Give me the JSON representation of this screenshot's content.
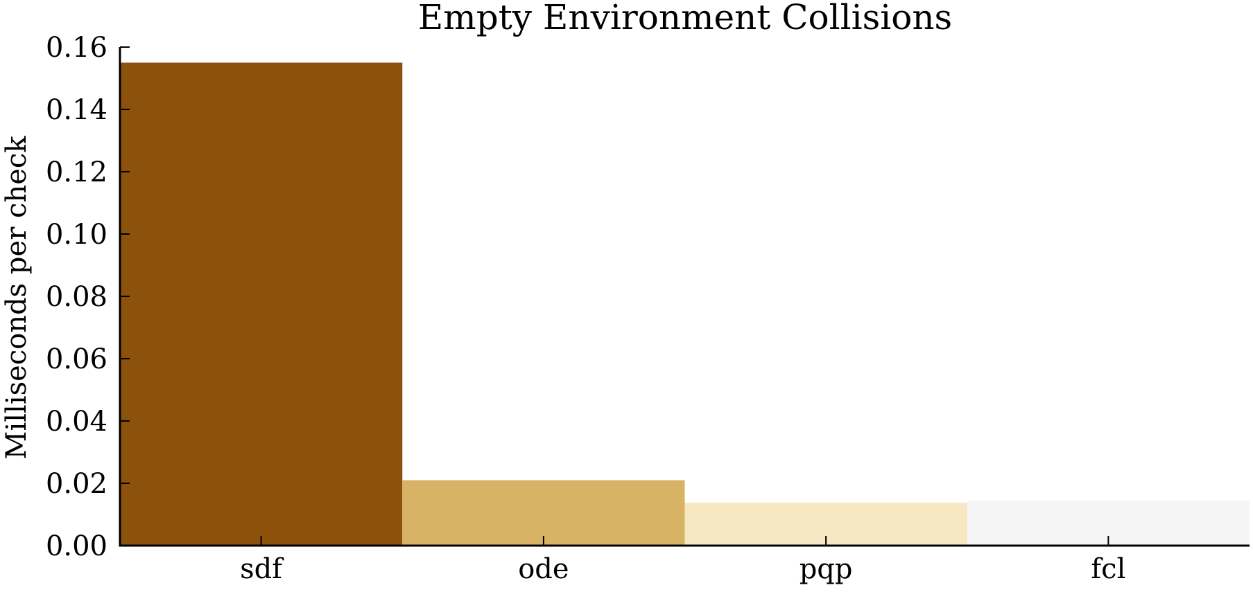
{
  "chart_data": {
    "type": "bar",
    "title": "Empty Environment Collisions",
    "xlabel": "",
    "ylabel": "Milliseconds per check",
    "categories": [
      "sdf",
      "ode",
      "pqp",
      "fcl"
    ],
    "values": [
      0.155,
      0.021,
      0.0138,
      0.0145
    ],
    "colors": [
      "#8c510a",
      "#d8b365",
      "#f6e8c3",
      "#f5f5f5"
    ],
    "ylim": [
      0,
      0.16
    ],
    "yticks": [
      "0.00",
      "0.02",
      "0.04",
      "0.06",
      "0.08",
      "0.10",
      "0.12",
      "0.14",
      "0.16"
    ],
    "grid": false,
    "legend": "none"
  }
}
